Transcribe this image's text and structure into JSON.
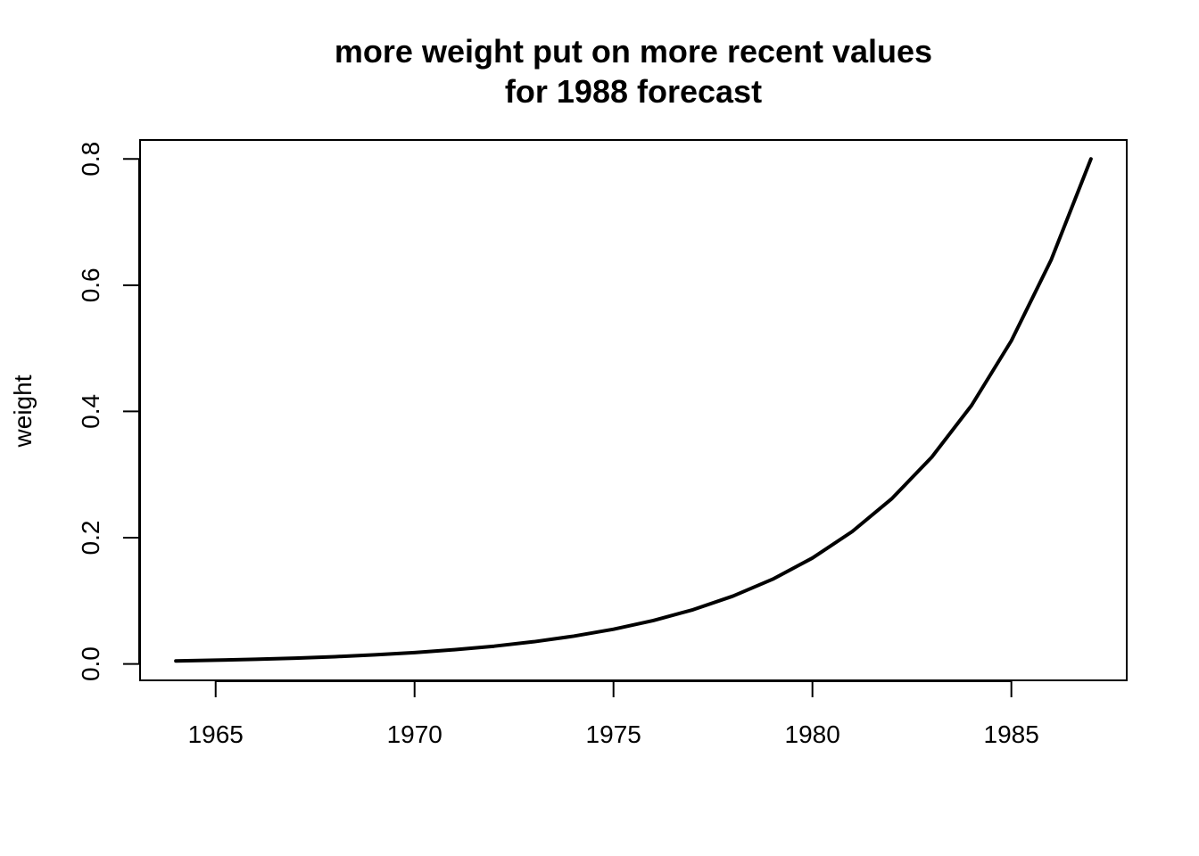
{
  "chart_data": {
    "type": "line",
    "title": "more weight put on more recent values",
    "subtitle": "for 1988 forecast",
    "xlabel": "",
    "ylabel": "weight",
    "xlim": [
      1963.1,
      1987.9
    ],
    "ylim": [
      -0.026,
      0.83
    ],
    "x_ticks": [
      1965,
      1970,
      1975,
      1980,
      1985
    ],
    "y_ticks": [
      0.0,
      0.2,
      0.4,
      0.6,
      0.8
    ],
    "y_tick_labels": [
      "0.0",
      "0.2",
      "0.4",
      "0.6",
      "0.8"
    ],
    "grid": false,
    "series": [
      {
        "color": "#000000",
        "x": [
          1964,
          1965,
          1966,
          1967,
          1968,
          1969,
          1970,
          1971,
          1972,
          1973,
          1974,
          1975,
          1976,
          1977,
          1978,
          1979,
          1980,
          1981,
          1982,
          1983,
          1984,
          1985,
          1986,
          1987
        ],
        "values": [
          0.0047,
          0.0059,
          0.0074,
          0.0092,
          0.0115,
          0.0144,
          0.018,
          0.0225,
          0.0281,
          0.0352,
          0.044,
          0.055,
          0.0687,
          0.0859,
          0.1074,
          0.1342,
          0.1678,
          0.2097,
          0.2621,
          0.3277,
          0.4096,
          0.512,
          0.64,
          0.8
        ]
      }
    ]
  }
}
